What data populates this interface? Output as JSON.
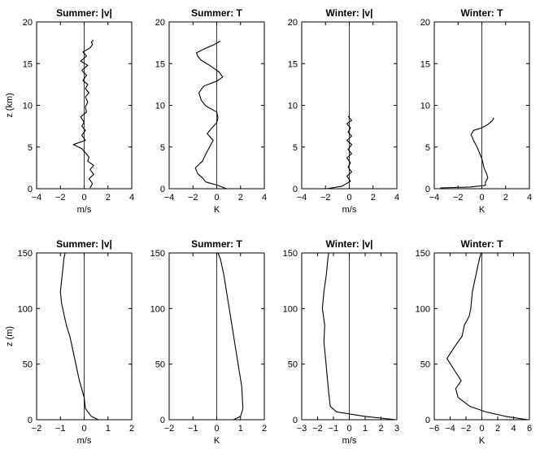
{
  "chart_data": [
    {
      "type": "line",
      "title": "Summer: |v|",
      "xlabel": "m/s",
      "ylabel": "z (km)",
      "xlim": [
        -4,
        4
      ],
      "ylim": [
        0,
        20
      ],
      "xticks": [
        -4,
        -2,
        0,
        2,
        4
      ],
      "yticks": [
        0,
        5,
        10,
        15,
        20
      ],
      "grid": false,
      "reference_line_x": 0,
      "series": [
        {
          "name": "profile",
          "points": [
            [
              0.5,
              0.1
            ],
            [
              0.7,
              0.6
            ],
            [
              0.4,
              1.2
            ],
            [
              0.8,
              1.7
            ],
            [
              0.5,
              2.3
            ],
            [
              0.8,
              2.8
            ],
            [
              0.3,
              3.3
            ],
            [
              0.4,
              3.8
            ],
            [
              0.1,
              4.3
            ],
            [
              -0.2,
              4.8
            ],
            [
              -0.9,
              5.3
            ],
            [
              0.1,
              5.8
            ],
            [
              -0.2,
              6.4
            ],
            [
              0.1,
              7.0
            ],
            [
              -0.2,
              7.5
            ],
            [
              0.0,
              8.0
            ],
            [
              -0.3,
              8.6
            ],
            [
              0.2,
              9.2
            ],
            [
              0.1,
              9.8
            ],
            [
              0.3,
              10.4
            ],
            [
              0.1,
              11.0
            ],
            [
              0.4,
              11.5
            ],
            [
              0.1,
              12.0
            ],
            [
              0.3,
              12.5
            ],
            [
              -0.1,
              13.0
            ],
            [
              0.2,
              13.6
            ],
            [
              -0.2,
              14.2
            ],
            [
              0.3,
              14.8
            ],
            [
              -0.3,
              15.3
            ],
            [
              0.2,
              15.9
            ],
            [
              -0.1,
              16.4
            ],
            [
              0.5,
              16.9
            ],
            [
              0.7,
              17.3
            ],
            [
              0.6,
              17.6
            ],
            [
              0.8,
              17.8
            ]
          ]
        }
      ]
    },
    {
      "type": "line",
      "title": "Summer: T",
      "xlabel": "K",
      "ylabel": "",
      "xlim": [
        -4,
        4
      ],
      "ylim": [
        0,
        20
      ],
      "xticks": [
        -4,
        -2,
        0,
        2,
        4
      ],
      "yticks": [
        0,
        5,
        10,
        15,
        20
      ],
      "grid": false,
      "reference_line_x": 0,
      "series": [
        {
          "name": "profile",
          "points": [
            [
              0.8,
              0.0
            ],
            [
              0.1,
              0.4
            ],
            [
              -0.9,
              0.8
            ],
            [
              -1.2,
              1.3
            ],
            [
              -1.6,
              1.8
            ],
            [
              -1.8,
              2.5
            ],
            [
              -1.2,
              3.3
            ],
            [
              -0.9,
              4.2
            ],
            [
              -0.6,
              5.0
            ],
            [
              -0.3,
              5.8
            ],
            [
              -0.8,
              6.6
            ],
            [
              -0.4,
              7.3
            ],
            [
              0.0,
              7.9
            ],
            [
              0.1,
              8.5
            ],
            [
              0.0,
              9.2
            ],
            [
              -0.9,
              9.9
            ],
            [
              -1.3,
              10.6
            ],
            [
              -1.5,
              11.5
            ],
            [
              -1.1,
              12.3
            ],
            [
              0.0,
              12.9
            ],
            [
              0.5,
              13.4
            ],
            [
              0.2,
              14.0
            ],
            [
              -0.6,
              14.8
            ],
            [
              -1.3,
              15.4
            ],
            [
              -1.6,
              15.9
            ],
            [
              -1.7,
              16.3
            ],
            [
              -1.0,
              16.8
            ],
            [
              -0.2,
              17.3
            ],
            [
              0.3,
              17.7
            ]
          ]
        }
      ]
    },
    {
      "type": "line",
      "title": "Winter: |v|",
      "xlabel": "m/s",
      "ylabel": "",
      "xlim": [
        -4,
        4
      ],
      "ylim": [
        0,
        20
      ],
      "xticks": [
        -4,
        -2,
        0,
        2,
        4
      ],
      "yticks": [
        0,
        5,
        10,
        15,
        20
      ],
      "grid": false,
      "reference_line_x": 0,
      "series": [
        {
          "name": "profile",
          "points": [
            [
              -1.9,
              0.0
            ],
            [
              -0.6,
              0.3
            ],
            [
              0.1,
              0.9
            ],
            [
              -0.2,
              1.5
            ],
            [
              0.2,
              2.0
            ],
            [
              -0.1,
              2.6
            ],
            [
              0.1,
              3.1
            ],
            [
              -0.2,
              3.7
            ],
            [
              0.2,
              4.2
            ],
            [
              -0.1,
              4.7
            ],
            [
              0.2,
              5.3
            ],
            [
              -0.2,
              5.8
            ],
            [
              0.2,
              6.3
            ],
            [
              -0.1,
              6.8
            ],
            [
              0.1,
              7.3
            ],
            [
              -0.2,
              7.8
            ],
            [
              0.2,
              8.2
            ],
            [
              -0.1,
              8.7
            ]
          ]
        }
      ]
    },
    {
      "type": "line",
      "title": "Winter: T",
      "xlabel": "K",
      "ylabel": "",
      "xlim": [
        -4,
        4
      ],
      "ylim": [
        0,
        20
      ],
      "xticks": [
        -4,
        -2,
        0,
        2,
        4
      ],
      "yticks": [
        0,
        5,
        10,
        15,
        20
      ],
      "grid": false,
      "reference_line_x": 0,
      "series": [
        {
          "name": "profile",
          "points": [
            [
              -3.5,
              0.1
            ],
            [
              -1.0,
              0.2
            ],
            [
              0.3,
              0.4
            ],
            [
              0.3,
              0.8
            ],
            [
              0.5,
              1.3
            ],
            [
              0.4,
              1.8
            ],
            [
              0.2,
              2.4
            ],
            [
              0.1,
              3.0
            ],
            [
              0.0,
              3.6
            ],
            [
              -0.2,
              4.3
            ],
            [
              -0.4,
              5.0
            ],
            [
              -0.7,
              5.8
            ],
            [
              -0.9,
              6.5
            ],
            [
              -0.7,
              7.0
            ],
            [
              0.0,
              7.3
            ],
            [
              0.5,
              7.7
            ],
            [
              0.9,
              8.2
            ],
            [
              1.0,
              8.5
            ]
          ]
        }
      ]
    },
    {
      "type": "line",
      "title": "Summer: |v|",
      "xlabel": "m/s",
      "ylabel": "z (m)",
      "xlim": [
        -2,
        2
      ],
      "ylim": [
        0,
        150
      ],
      "xticks": [
        -2,
        -1,
        0,
        1,
        2
      ],
      "yticks": [
        0,
        50,
        100,
        150
      ],
      "grid": false,
      "reference_line_x": 0,
      "series": [
        {
          "name": "profile",
          "points": [
            [
              0.6,
              0
            ],
            [
              0.3,
              3
            ],
            [
              0.05,
              10
            ],
            [
              0.0,
              20
            ],
            [
              -0.2,
              35
            ],
            [
              -0.3,
              45
            ],
            [
              -0.4,
              55
            ],
            [
              -0.5,
              65
            ],
            [
              -0.6,
              75
            ],
            [
              -0.75,
              85
            ],
            [
              -0.85,
              95
            ],
            [
              -0.95,
              105
            ],
            [
              -1.0,
              115
            ],
            [
              -0.95,
              125
            ],
            [
              -0.9,
              135
            ],
            [
              -0.85,
              145
            ],
            [
              -0.8,
              150
            ]
          ]
        }
      ]
    },
    {
      "type": "line",
      "title": "Summer: T",
      "xlabel": "K",
      "ylabel": "",
      "xlim": [
        -2,
        2
      ],
      "ylim": [
        0,
        150
      ],
      "xticks": [
        -2,
        -1,
        0,
        1,
        2
      ],
      "yticks": [
        0,
        50,
        100,
        150
      ],
      "grid": false,
      "reference_line_x": 0,
      "series": [
        {
          "name": "profile",
          "points": [
            [
              0.7,
              0
            ],
            [
              1.0,
              3
            ],
            [
              1.1,
              10
            ],
            [
              1.05,
              30
            ],
            [
              0.9,
              50
            ],
            [
              0.75,
              70
            ],
            [
              0.6,
              90
            ],
            [
              0.45,
              110
            ],
            [
              0.3,
              130
            ],
            [
              0.15,
              145
            ],
            [
              0.05,
              150
            ]
          ]
        }
      ]
    },
    {
      "type": "line",
      "title": "Winter: |v|",
      "xlabel": "m/s",
      "ylabel": "",
      "xlim": [
        -3,
        3
      ],
      "ylim": [
        0,
        150
      ],
      "xticks": [
        -3,
        -2,
        -1,
        0,
        1,
        2,
        3
      ],
      "yticks": [
        0,
        50,
        100,
        150
      ],
      "grid": false,
      "reference_line_x": 0,
      "series": [
        {
          "name": "profile",
          "points": [
            [
              2.95,
              0
            ],
            [
              1.0,
              3
            ],
            [
              -0.8,
              7
            ],
            [
              -1.2,
              12
            ],
            [
              -1.3,
              25
            ],
            [
              -1.4,
              40
            ],
            [
              -1.5,
              55
            ],
            [
              -1.6,
              70
            ],
            [
              -1.55,
              85
            ],
            [
              -1.7,
              100
            ],
            [
              -1.6,
              115
            ],
            [
              -1.45,
              130
            ],
            [
              -1.35,
              145
            ],
            [
              -1.3,
              150
            ]
          ]
        }
      ]
    },
    {
      "type": "line",
      "title": "Winter: T",
      "xlabel": "K",
      "ylabel": "",
      "xlim": [
        -6,
        6
      ],
      "ylim": [
        0,
        150
      ],
      "xticks": [
        -6,
        -4,
        -2,
        0,
        2,
        4,
        6
      ],
      "yticks": [
        0,
        50,
        100,
        150
      ],
      "grid": false,
      "reference_line_x": 0,
      "series": [
        {
          "name": "profile",
          "points": [
            [
              5.8,
              0
            ],
            [
              3.0,
              3
            ],
            [
              0.5,
              7
            ],
            [
              -1.5,
              12
            ],
            [
              -3.0,
              20
            ],
            [
              -3.3,
              28
            ],
            [
              -2.6,
              35
            ],
            [
              -3.5,
              45
            ],
            [
              -4.4,
              55
            ],
            [
              -3.5,
              65
            ],
            [
              -2.5,
              75
            ],
            [
              -2.2,
              85
            ],
            [
              -1.6,
              93
            ],
            [
              -1.4,
              100
            ],
            [
              -1.2,
              115
            ],
            [
              -0.9,
              125
            ],
            [
              -0.6,
              135
            ],
            [
              -0.3,
              145
            ],
            [
              -0.1,
              150
            ]
          ]
        }
      ]
    }
  ]
}
